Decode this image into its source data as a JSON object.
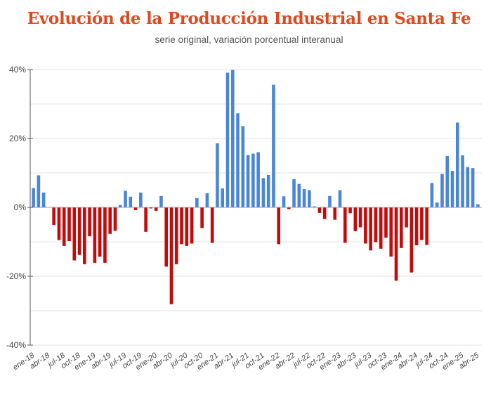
{
  "colors": {
    "title": "#de4a1f",
    "positive": "#4a86d8",
    "negative": "#c40a0a",
    "grid": "#e3e3e3",
    "axis": "#555555"
  },
  "chart_data": {
    "type": "bar",
    "title": "Evolución de la Producción Industrial en Santa Fe",
    "subtitle": "serie original, variación porcentual interanual",
    "xlabel": "",
    "ylabel": "",
    "ylim": [
      -40,
      40
    ],
    "yticks": [
      40,
      20,
      0,
      -20,
      -40
    ],
    "ytick_labels": [
      "40%",
      "20%",
      "0%",
      "-20%",
      "-40%"
    ],
    "minor_gridlines": [
      30,
      10,
      -10,
      -30
    ],
    "grid": true,
    "legend": "none",
    "color_rule": "blue when positive, red when negative",
    "x_tick_every": 3,
    "categories": [
      "ene-18",
      "feb-18",
      "mar-18",
      "abr-18",
      "may-18",
      "jun-18",
      "jul-18",
      "ago-18",
      "sep-18",
      "oct-18",
      "nov-18",
      "dic-18",
      "ene-19",
      "feb-19",
      "mar-19",
      "abr-19",
      "may-19",
      "jun-19",
      "jul-19",
      "ago-19",
      "sep-19",
      "oct-19",
      "nov-19",
      "dic-19",
      "ene-20",
      "feb-20",
      "mar-20",
      "abr-20",
      "may-20",
      "jun-20",
      "jul-20",
      "ago-20",
      "sep-20",
      "oct-20",
      "nov-20",
      "dic-20",
      "ene-21",
      "feb-21",
      "mar-21",
      "abr-21",
      "may-21",
      "jun-21",
      "jul-21",
      "ago-21",
      "sep-21",
      "oct-21",
      "nov-21",
      "dic-21",
      "ene-22",
      "feb-22",
      "mar-22",
      "abr-22",
      "may-22",
      "jun-22",
      "jul-22",
      "ago-22",
      "sep-22",
      "oct-22",
      "nov-22",
      "dic-22",
      "ene-23",
      "feb-23",
      "mar-23",
      "abr-23",
      "may-23",
      "jun-23",
      "jul-23",
      "ago-23",
      "sep-23",
      "oct-23",
      "nov-23",
      "dic-23",
      "ene-24",
      "feb-24",
      "mar-24",
      "abr-24",
      "may-24",
      "jun-24",
      "jul-24",
      "ago-24",
      "sep-24",
      "oct-24",
      "nov-24",
      "dic-24",
      "ene-25",
      "feb-25",
      "mar-25",
      "abr-25"
    ],
    "values": [
      5.6,
      9.3,
      4.3,
      0.0,
      -5.1,
      -9.5,
      -11.2,
      -9.8,
      -15.4,
      -13.8,
      -16.5,
      -8.4,
      -16.1,
      -14.3,
      -16.1,
      -7.7,
      -6.8,
      0.7,
      4.8,
      3.1,
      -0.8,
      4.3,
      -7.1,
      -0.3,
      -1.0,
      3.3,
      -17.2,
      -28.1,
      -16.5,
      -10.7,
      -11.2,
      -10.5,
      2.7,
      -6.0,
      4.1,
      -10.3,
      18.6,
      5.5,
      39.1,
      39.9,
      27.3,
      23.6,
      15.2,
      15.6,
      16.0,
      8.5,
      9.4,
      35.6,
      -10.7,
      3.2,
      -0.5,
      8.2,
      6.8,
      5.3,
      5.0,
      0.3,
      -1.6,
      -3.4,
      3.3,
      -3.6,
      5.0,
      -10.3,
      -1.7,
      -6.9,
      -5.8,
      -10.5,
      -12.5,
      -10.1,
      -12.0,
      -8.8,
      -14.3,
      -21.3,
      -11.8,
      -5.8,
      -18.9,
      -11.0,
      -9.5,
      -10.9,
      7.1,
      1.4,
      9.7,
      14.9,
      10.6,
      24.6,
      15.1,
      11.7,
      11.4,
      0.9
    ]
  }
}
